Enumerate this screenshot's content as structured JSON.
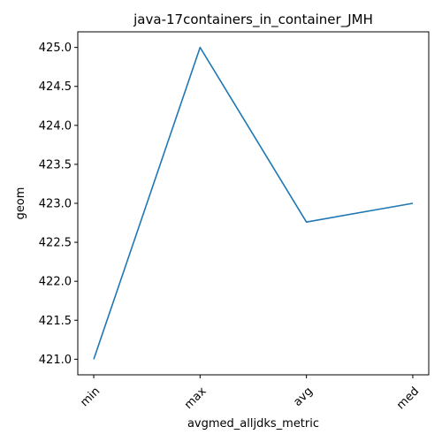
{
  "chart_data": {
    "type": "line",
    "title": "java-17containers_in_container_JMH",
    "xlabel": "avgmed_alljdks_metric",
    "ylabel": "geom",
    "categories": [
      "min",
      "max",
      "avg",
      "med"
    ],
    "series": [
      {
        "values": [
          421.0,
          425.0,
          422.76,
          423.0
        ],
        "color": "#1f77b4"
      }
    ],
    "ylim": [
      420.8,
      425.2
    ],
    "yticks": [
      "421.0",
      "421.5",
      "422.0",
      "422.5",
      "423.0",
      "423.5",
      "424.0",
      "424.5",
      "425.0"
    ],
    "grid": false,
    "legend": "none"
  }
}
